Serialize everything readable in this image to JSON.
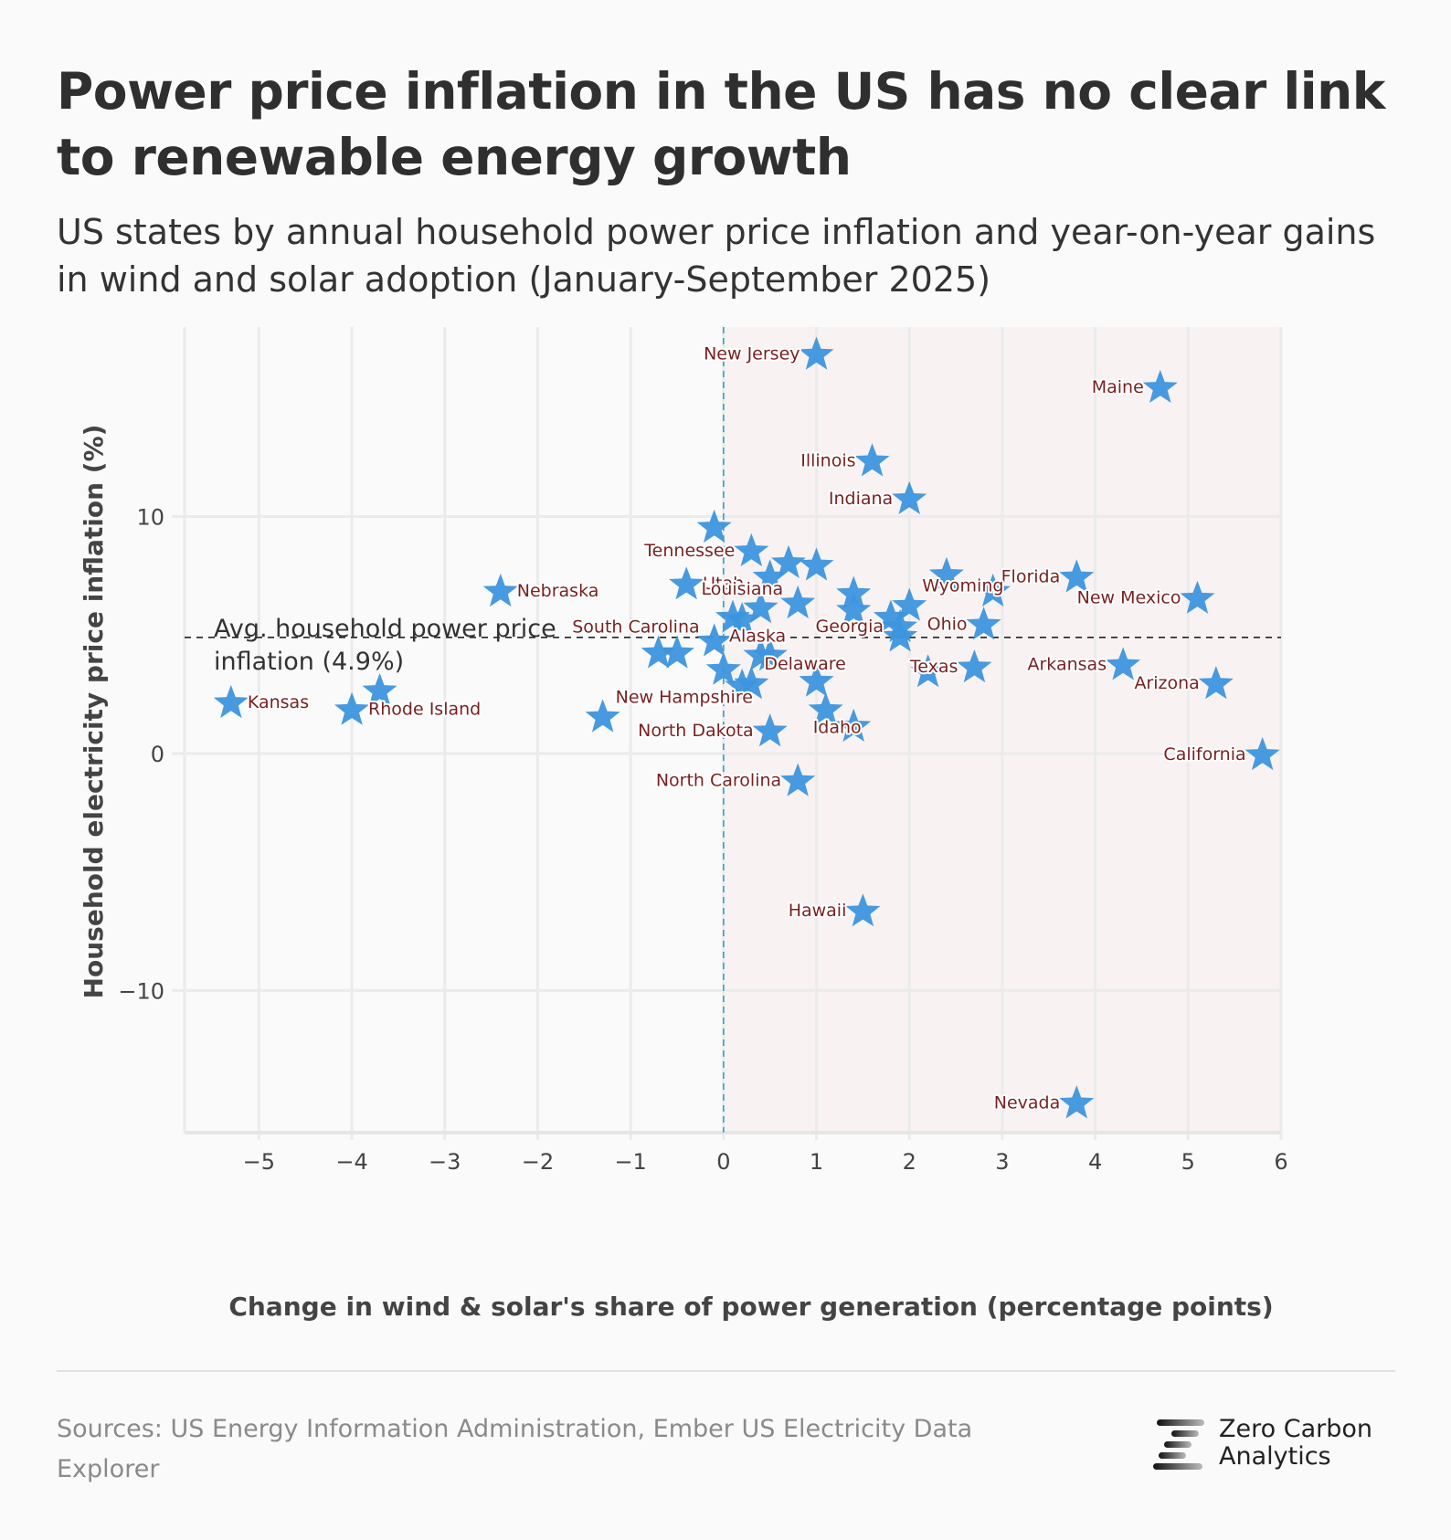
{
  "header": {
    "title": "Power price inflation in the US has no clear link to renewable energy growth",
    "subtitle": "US states by annual household power price inflation and year-on-year gains in wind and solar adoption (January-September 2025)"
  },
  "footer": {
    "sources": "Sources: US Energy Information Administration, Ember US Electricity Data Explorer",
    "brand_line1": "Zero Carbon",
    "brand_line2": "Analytics"
  },
  "colors": {
    "marker": "#3d95dd",
    "label": "#7a1f1f",
    "positive_region": "#f8f2f2",
    "zero_line": "#2aa7c9",
    "avg_line": "#222222",
    "grid": "#ebebeb"
  },
  "chart_data": {
    "type": "scatter",
    "title": "Power price inflation in the US has no clear link to renewable energy growth",
    "xlabel": "Change in wind & solar's share of power generation (percentage points)",
    "ylabel": "Household electricity price inflation (%)",
    "xlim": [
      -5.8,
      6.0
    ],
    "ylim": [
      -16.0,
      18.0
    ],
    "xticks": [
      -5,
      -4,
      -3,
      -2,
      -1,
      0,
      1,
      2,
      3,
      4,
      5,
      6
    ],
    "xtick_labels": [
      "-5",
      "-4",
      "-3",
      "-2",
      "-1",
      "0",
      "1",
      "2",
      "3",
      "4",
      "5",
      "6"
    ],
    "yticks": [
      -10,
      0,
      10
    ],
    "ytick_labels": [
      "-10",
      "0",
      "10"
    ],
    "grid": true,
    "marker": "star",
    "shaded_region": "x > 0",
    "reference_lines": [
      {
        "axis": "y",
        "value": 4.9,
        "style": "dashed",
        "label": "Avg. household power price inflation (4.9%)"
      },
      {
        "axis": "x",
        "value": 0,
        "style": "dashed"
      }
    ],
    "avg_label_lines": [
      "Avg. household power price",
      "inflation (4.9%)"
    ],
    "points": [
      {
        "label": "New Jersey",
        "x": 1.0,
        "y": 16.9,
        "label_side": "left"
      },
      {
        "label": "Maine",
        "x": 4.7,
        "y": 15.5,
        "label_side": "left"
      },
      {
        "label": "Illinois",
        "x": 1.6,
        "y": 12.4,
        "label_side": "left"
      },
      {
        "label": "Indiana",
        "x": 2.0,
        "y": 10.8,
        "label_side": "left"
      },
      {
        "label": "",
        "x": -0.1,
        "y": 9.6
      },
      {
        "label": "Tennessee",
        "x": 0.3,
        "y": 8.6,
        "label_side": "left"
      },
      {
        "label": "",
        "x": 0.7,
        "y": 8.1
      },
      {
        "label": "",
        "x": 1.0,
        "y": 8.0
      },
      {
        "label": "",
        "x": 0.5,
        "y": 7.5
      },
      {
        "label": "Utah",
        "x": -0.4,
        "y": 7.2,
        "label_side": "right"
      },
      {
        "label": "Nebraska",
        "x": -2.4,
        "y": 6.9,
        "label_side": "right"
      },
      {
        "label": "",
        "x": 2.4,
        "y": 7.6
      },
      {
        "label": "Florida",
        "x": 3.8,
        "y": 7.5,
        "label_side": "left"
      },
      {
        "label": "",
        "x": 2.9,
        "y": 6.9
      },
      {
        "label": "New Mexico",
        "x": 5.1,
        "y": 6.6,
        "label_side": "left"
      },
      {
        "label": "",
        "x": 1.4,
        "y": 6.8
      },
      {
        "label": "Louisiana",
        "x": 0.8,
        "y": 6.4,
        "label_side": "left-up"
      },
      {
        "label": "",
        "x": 0.4,
        "y": 6.2
      },
      {
        "label": "Wyoming",
        "x": 2.0,
        "y": 6.3,
        "label_side": "right-up"
      },
      {
        "label": "",
        "x": 1.4,
        "y": 6.1
      },
      {
        "label": "",
        "x": 1.8,
        "y": 5.8
      },
      {
        "label": "Alaska",
        "x": 0.1,
        "y": 5.8,
        "label_side": "below-right"
      },
      {
        "label": "",
        "x": 0.2,
        "y": 5.7
      },
      {
        "label": "Georgia",
        "x": 1.9,
        "y": 5.4,
        "label_side": "left"
      },
      {
        "label": "",
        "x": 1.9,
        "y": 5.0
      },
      {
        "label": "Ohio",
        "x": 2.8,
        "y": 5.5,
        "label_side": "left"
      },
      {
        "label": "South Carolina",
        "x": -0.1,
        "y": 4.8,
        "label_side": "left-up"
      },
      {
        "label": "",
        "x": -0.7,
        "y": 4.3
      },
      {
        "label": "",
        "x": -0.5,
        "y": 4.3
      },
      {
        "label": "",
        "x": 0.4,
        "y": 4.2
      },
      {
        "label": "",
        "x": 0.5,
        "y": 4.2
      },
      {
        "label": "",
        "x": 0.0,
        "y": 3.6
      },
      {
        "label": "Delaware",
        "x": 0.3,
        "y": 3.0,
        "label_side": "right-up"
      },
      {
        "label": "",
        "x": 0.2,
        "y": 2.9
      },
      {
        "label": "",
        "x": 1.0,
        "y": 3.1
      },
      {
        "label": "Texas",
        "x": 2.7,
        "y": 3.7,
        "label_side": "left"
      },
      {
        "label": "",
        "x": 2.2,
        "y": 3.5
      },
      {
        "label": "Arkansas",
        "x": 4.3,
        "y": 3.8,
        "label_side": "left"
      },
      {
        "label": "Arizona",
        "x": 5.3,
        "y": 3.0,
        "label_side": "left"
      },
      {
        "label": "Kansas",
        "x": -5.3,
        "y": 2.2,
        "label_side": "right"
      },
      {
        "label": "",
        "x": -3.7,
        "y": 2.7
      },
      {
        "label": "Rhode Island",
        "x": -4.0,
        "y": 1.9,
        "label_side": "right"
      },
      {
        "label": "New Hampshire",
        "x": -1.3,
        "y": 1.6,
        "label_side": "right-up"
      },
      {
        "label": "Idaho",
        "x": 1.1,
        "y": 1.9,
        "label_side": "below"
      },
      {
        "label": "",
        "x": 1.4,
        "y": 1.2
      },
      {
        "label": "North Dakota",
        "x": 0.5,
        "y": 1.0,
        "label_side": "left"
      },
      {
        "label": "California",
        "x": 5.8,
        "y": 0.0,
        "label_side": "left"
      },
      {
        "label": "North Carolina",
        "x": 0.8,
        "y": -1.1,
        "label_side": "left"
      },
      {
        "label": "Hawaii",
        "x": 1.5,
        "y": -6.6,
        "label_side": "left"
      },
      {
        "label": "Nevada",
        "x": 3.8,
        "y": -14.7,
        "label_side": "left"
      }
    ]
  }
}
